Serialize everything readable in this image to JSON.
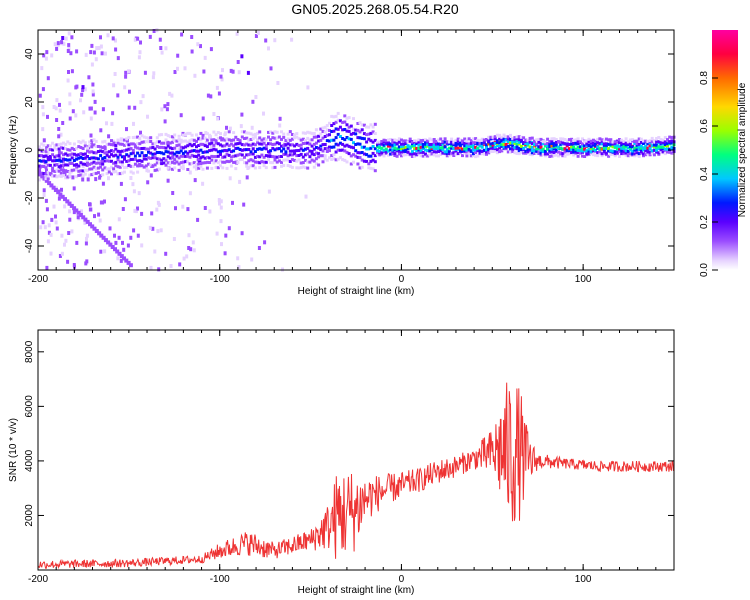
{
  "title": "GN05.2025.268.05.54.R20",
  "colors": {
    "snr_line": "#ee3333",
    "spectrogram_map": [
      "#ffffff",
      "#e6d2ff",
      "#9b4dff",
      "#5a00ff",
      "#0018ff",
      "#00c8ff",
      "#00ff80",
      "#9aff00",
      "#ffd800",
      "#ff6a00",
      "#ff0040",
      "#ff00a0"
    ]
  },
  "chart_data": [
    {
      "type": "heatmap",
      "title": "",
      "xlabel": "Height of straight line (km)",
      "ylabel": "Frequency (Hz)",
      "xlim": [
        -200,
        150
      ],
      "ylim": [
        -50,
        50
      ],
      "x_ticks": [
        -200,
        -100,
        0,
        100
      ],
      "y_ticks": [
        -40,
        -20,
        0,
        20,
        40
      ],
      "colorbar": {
        "label": "Normalized spectral amplitude",
        "range": [
          0,
          1
        ],
        "ticks": [
          0.0,
          0.2,
          0.4,
          0.6,
          0.8
        ]
      },
      "main_trace": {
        "description_x": [
          -200,
          -150,
          -100,
          -50,
          -35,
          -20,
          0,
          20,
          40,
          55,
          75,
          100,
          130,
          150
        ],
        "center_freq_hz": [
          -5,
          -2,
          0,
          0,
          6,
          1,
          1,
          1,
          1,
          3,
          1,
          1,
          1,
          2
        ]
      },
      "descending_trace": {
        "x": [
          -200,
          -150
        ],
        "freq_hz": [
          -10,
          -48
        ]
      },
      "grid": false
    },
    {
      "type": "line",
      "title": "",
      "xlabel": "Height of straight line (km)",
      "ylabel": "SNR (10 * v/v)",
      "xlim": [
        -200,
        150
      ],
      "ylim": [
        0,
        8800
      ],
      "x_ticks": [
        -200,
        -100,
        0,
        100
      ],
      "y_ticks": [
        2000,
        4000,
        6000,
        8000
      ],
      "series": [
        {
          "envelope_x": [
            -200,
            -150,
            -110,
            -100,
            -85,
            -80,
            -70,
            -50,
            -40,
            -35,
            -25,
            -20,
            -10,
            0,
            10,
            20,
            30,
            40,
            50,
            55,
            60,
            65,
            70,
            75,
            90,
            110,
            130,
            150
          ],
          "envelope_mean": [
            200,
            250,
            400,
            700,
            1000,
            900,
            700,
            1100,
            1600,
            2000,
            2200,
            2600,
            2900,
            3100,
            3300,
            3600,
            3800,
            4100,
            4300,
            4400,
            4300,
            4300,
            4000,
            4000,
            3900,
            3800,
            3800,
            3800
          ],
          "envelope_noise": [
            150,
            150,
            150,
            300,
            450,
            450,
            300,
            400,
            900,
            1800,
            1500,
            900,
            600,
            500,
            450,
            450,
            400,
            400,
            900,
            2000,
            3000,
            2500,
            1000,
            300,
            200,
            200,
            200,
            200
          ]
        }
      ],
      "grid": false
    }
  ]
}
